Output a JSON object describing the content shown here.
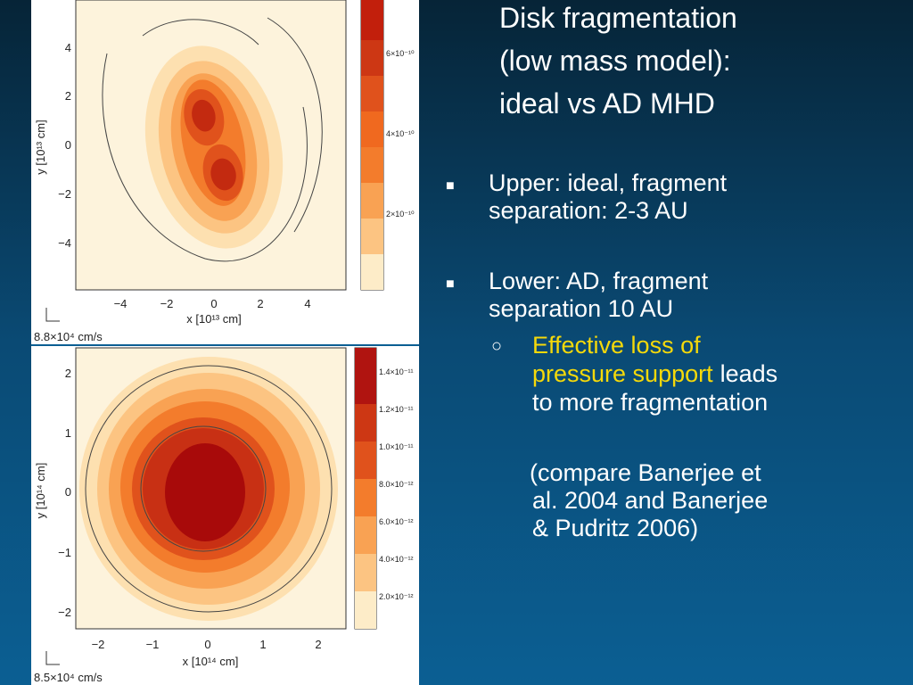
{
  "title": {
    "lines": [
      "Disk fragmentation",
      "(low mass model):",
      "ideal vs AD MHD"
    ]
  },
  "bullets": [
    {
      "lines": [
        "Upper: ideal, fragment",
        "separation: 2-3 AU"
      ]
    },
    {
      "lines": [
        "Lower: AD, fragment",
        "separation 10 AU"
      ]
    }
  ],
  "sub_bullet": {
    "lines": [
      [
        {
          "text": "Effective loss of",
          "highlight": true
        }
      ],
      [
        {
          "text": "pressure support",
          "highlight": true
        },
        {
          "text": "leads"
        }
      ],
      [
        {
          "text": "to more fragmentation"
        }
      ]
    ]
  },
  "note": {
    "lines": [
      "(compare Banerjee et",
      "al. 2004 and Banerjee",
      "& Pudritz 2006)"
    ]
  },
  "panels": [
    {
      "xticks": [
        "−4",
        "−2",
        "0",
        "2",
        "4"
      ],
      "yticks": [
        "4",
        "2",
        "0",
        "−2",
        "−4"
      ],
      "xlabel": "x [10¹³ cm]",
      "ylabel": "y [10¹³ cm]",
      "colorbar": [
        "6×10⁻¹⁰",
        "4×10⁻¹⁰",
        "2×10⁻¹⁰"
      ],
      "scale": "8.8×10⁴ cm/s"
    },
    {
      "xticks": [
        "−2",
        "−1",
        "0",
        "1",
        "2"
      ],
      "yticks": [
        "2",
        "1",
        "0",
        "−1",
        "−2"
      ],
      "xlabel": "x [10¹⁴ cm]",
      "ylabel": "y [10¹⁴ cm]",
      "colorbar": [
        "1.4×10⁻¹¹",
        "1.2×10⁻¹¹",
        "1.0×10⁻¹¹",
        "8.0×10⁻¹²",
        "6.0×10⁻¹²",
        "4.0×10⁻¹²",
        "2.0×10⁻¹²"
      ],
      "scale": "8.5×10⁴ cm/s"
    }
  ]
}
